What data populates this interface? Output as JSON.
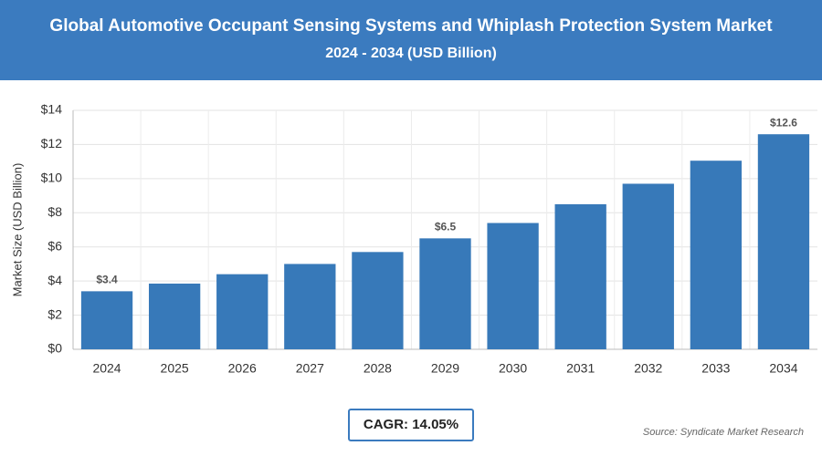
{
  "chart_data": {
    "type": "bar",
    "title": "Global Automotive Occupant Sensing Systems and Whiplash Protection System Market",
    "subtitle": "2024 - 2034 (USD Billion)",
    "y_label": "Market Size (USD Billion)",
    "categories": [
      "2024",
      "2025",
      "2026",
      "2027",
      "2028",
      "2029",
      "2030",
      "2031",
      "2032",
      "2033",
      "2034"
    ],
    "values": [
      3.4,
      3.85,
      4.4,
      5.0,
      5.7,
      6.5,
      7.4,
      8.5,
      9.7,
      11.05,
      12.6
    ],
    "value_labels": [
      "$3.4",
      null,
      null,
      null,
      null,
      "$6.5",
      null,
      null,
      null,
      null,
      "$12.6"
    ],
    "color": "#3779b9",
    "ylim": [
      0,
      14
    ],
    "yticks": [
      {
        "value": 0,
        "label": "$0"
      },
      {
        "value": 2,
        "label": "$2"
      },
      {
        "value": 4,
        "label": "$4"
      },
      {
        "value": 6,
        "label": "$6"
      },
      {
        "value": 8,
        "label": "$8"
      },
      {
        "value": 10,
        "label": "$10"
      },
      {
        "value": 12,
        "label": "$12"
      },
      {
        "value": 14,
        "label": "$14"
      }
    ],
    "grid": true,
    "cagr": "CAGR: 14.05%",
    "source": "Source: Syndicate Market Research"
  }
}
